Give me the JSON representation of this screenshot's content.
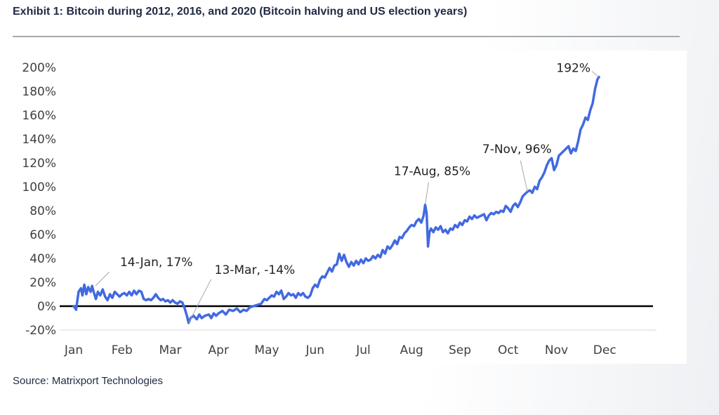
{
  "header": {
    "title": "Exhibit 1: Bitcoin during 2012, 2016, and 2020 (Bitcoin halving and US election years)"
  },
  "footer": {
    "source": "Source: Matrixport Technologies"
  },
  "chart_data": {
    "type": "line",
    "title": "",
    "xlabel": "",
    "ylabel": "",
    "ylim": [
      -20,
      200
    ],
    "xlim": [
      0,
      12
    ],
    "yticks": [
      -20,
      0,
      20,
      40,
      60,
      80,
      100,
      120,
      140,
      160,
      180,
      200
    ],
    "ytick_labels": [
      "-20%",
      "0%",
      "20%",
      "40%",
      "60%",
      "80%",
      "100%",
      "120%",
      "140%",
      "160%",
      "180%",
      "200%"
    ],
    "xtick_labels": [
      "Jan",
      "Feb",
      "Mar",
      "Apr",
      "May",
      "Jun",
      "Jul",
      "Aug",
      "Sep",
      "Oct",
      "Nov",
      "Dec"
    ],
    "grid": false,
    "zero_line": true,
    "line_color": "#4169e1",
    "series": [
      {
        "points": [
          [
            0.0,
            0
          ],
          [
            0.05,
            -3
          ],
          [
            0.1,
            12
          ],
          [
            0.15,
            15
          ],
          [
            0.18,
            9
          ],
          [
            0.22,
            18
          ],
          [
            0.26,
            10
          ],
          [
            0.3,
            16
          ],
          [
            0.35,
            12
          ],
          [
            0.38,
            17
          ],
          [
            0.42,
            11
          ],
          [
            0.46,
            6
          ],
          [
            0.5,
            12
          ],
          [
            0.55,
            9
          ],
          [
            0.6,
            14
          ],
          [
            0.65,
            8
          ],
          [
            0.7,
            5
          ],
          [
            0.75,
            10
          ],
          [
            0.8,
            7
          ],
          [
            0.85,
            12
          ],
          [
            0.9,
            10
          ],
          [
            0.95,
            8
          ],
          [
            1.0,
            10
          ],
          [
            1.05,
            11
          ],
          [
            1.1,
            9
          ],
          [
            1.15,
            12
          ],
          [
            1.2,
            9
          ],
          [
            1.25,
            13
          ],
          [
            1.3,
            10
          ],
          [
            1.35,
            13
          ],
          [
            1.4,
            12
          ],
          [
            1.45,
            6
          ],
          [
            1.5,
            5
          ],
          [
            1.55,
            6
          ],
          [
            1.6,
            5
          ],
          [
            1.65,
            7
          ],
          [
            1.7,
            10
          ],
          [
            1.75,
            7
          ],
          [
            1.8,
            5
          ],
          [
            1.85,
            6
          ],
          [
            1.9,
            4
          ],
          [
            1.95,
            5
          ],
          [
            2.0,
            3
          ],
          [
            2.05,
            5
          ],
          [
            2.1,
            3
          ],
          [
            2.15,
            2
          ],
          [
            2.2,
            4
          ],
          [
            2.25,
            3
          ],
          [
            2.3,
            -2
          ],
          [
            2.35,
            -9
          ],
          [
            2.38,
            -14
          ],
          [
            2.42,
            -10
          ],
          [
            2.48,
            -8
          ],
          [
            2.55,
            -11
          ],
          [
            2.6,
            -7
          ],
          [
            2.65,
            -10
          ],
          [
            2.72,
            -8
          ],
          [
            2.8,
            -7
          ],
          [
            2.85,
            -10
          ],
          [
            2.9,
            -6
          ],
          [
            2.95,
            -8
          ],
          [
            3.0,
            -6
          ],
          [
            3.08,
            -4
          ],
          [
            3.15,
            -7
          ],
          [
            3.22,
            -3
          ],
          [
            3.3,
            -4
          ],
          [
            3.38,
            -2
          ],
          [
            3.45,
            -5
          ],
          [
            3.52,
            -3
          ],
          [
            3.58,
            -4
          ],
          [
            3.65,
            -1
          ],
          [
            3.72,
            0
          ],
          [
            3.8,
            1
          ],
          [
            3.88,
            2
          ],
          [
            3.95,
            6
          ],
          [
            4.0,
            5
          ],
          [
            4.05,
            7
          ],
          [
            4.1,
            9
          ],
          [
            4.15,
            8
          ],
          [
            4.2,
            12
          ],
          [
            4.25,
            10
          ],
          [
            4.3,
            13
          ],
          [
            4.35,
            6
          ],
          [
            4.4,
            8
          ],
          [
            4.45,
            11
          ],
          [
            4.5,
            9
          ],
          [
            4.55,
            10
          ],
          [
            4.6,
            7
          ],
          [
            4.65,
            11
          ],
          [
            4.7,
            9
          ],
          [
            4.75,
            11
          ],
          [
            4.8,
            8
          ],
          [
            4.85,
            7
          ],
          [
            4.9,
            9
          ],
          [
            4.95,
            15
          ],
          [
            5.0,
            18
          ],
          [
            5.05,
            16
          ],
          [
            5.1,
            22
          ],
          [
            5.15,
            25
          ],
          [
            5.2,
            24
          ],
          [
            5.25,
            28
          ],
          [
            5.3,
            32
          ],
          [
            5.35,
            29
          ],
          [
            5.4,
            34
          ],
          [
            5.45,
            35
          ],
          [
            5.5,
            44
          ],
          [
            5.55,
            38
          ],
          [
            5.6,
            43
          ],
          [
            5.65,
            37
          ],
          [
            5.7,
            33
          ],
          [
            5.75,
            37
          ],
          [
            5.8,
            34
          ],
          [
            5.85,
            38
          ],
          [
            5.9,
            35
          ],
          [
            5.95,
            39
          ],
          [
            6.0,
            36
          ],
          [
            6.05,
            40
          ],
          [
            6.1,
            38
          ],
          [
            6.15,
            39
          ],
          [
            6.2,
            42
          ],
          [
            6.25,
            40
          ],
          [
            6.3,
            43
          ],
          [
            6.35,
            41
          ],
          [
            6.4,
            47
          ],
          [
            6.45,
            44
          ],
          [
            6.5,
            50
          ],
          [
            6.55,
            48
          ],
          [
            6.6,
            51
          ],
          [
            6.65,
            55
          ],
          [
            6.7,
            52
          ],
          [
            6.75,
            58
          ],
          [
            6.8,
            57
          ],
          [
            6.85,
            61
          ],
          [
            6.9,
            63
          ],
          [
            6.95,
            66
          ],
          [
            7.0,
            68
          ],
          [
            7.05,
            67
          ],
          [
            7.1,
            71
          ],
          [
            7.15,
            73
          ],
          [
            7.2,
            70
          ],
          [
            7.25,
            76
          ],
          [
            7.28,
            85
          ],
          [
            7.31,
            78
          ],
          [
            7.34,
            50
          ],
          [
            7.37,
            62
          ],
          [
            7.4,
            65
          ],
          [
            7.45,
            62
          ],
          [
            7.5,
            66
          ],
          [
            7.55,
            64
          ],
          [
            7.6,
            67
          ],
          [
            7.65,
            62
          ],
          [
            7.7,
            64
          ],
          [
            7.75,
            61
          ],
          [
            7.8,
            65
          ],
          [
            7.85,
            64
          ],
          [
            7.9,
            68
          ],
          [
            7.95,
            66
          ],
          [
            8.0,
            70
          ],
          [
            8.05,
            68
          ],
          [
            8.1,
            72
          ],
          [
            8.15,
            71
          ],
          [
            8.2,
            75
          ],
          [
            8.25,
            73
          ],
          [
            8.3,
            76
          ],
          [
            8.35,
            74
          ],
          [
            8.4,
            75
          ],
          [
            8.45,
            76
          ],
          [
            8.5,
            77
          ],
          [
            8.55,
            72
          ],
          [
            8.6,
            76
          ],
          [
            8.65,
            78
          ],
          [
            8.7,
            77
          ],
          [
            8.75,
            79
          ],
          [
            8.8,
            78
          ],
          [
            8.85,
            80
          ],
          [
            8.9,
            79
          ],
          [
            8.95,
            84
          ],
          [
            9.0,
            82
          ],
          [
            9.05,
            79
          ],
          [
            9.1,
            84
          ],
          [
            9.15,
            86
          ],
          [
            9.2,
            83
          ],
          [
            9.25,
            87
          ],
          [
            9.3,
            92
          ],
          [
            9.35,
            94
          ],
          [
            9.4,
            96
          ],
          [
            9.45,
            97
          ],
          [
            9.5,
            95
          ],
          [
            9.55,
            100
          ],
          [
            9.6,
            98
          ],
          [
            9.65,
            105
          ],
          [
            9.7,
            108
          ],
          [
            9.75,
            112
          ],
          [
            9.8,
            118
          ],
          [
            9.85,
            122
          ],
          [
            9.9,
            124
          ],
          [
            9.95,
            114
          ],
          [
            10.0,
            118
          ],
          [
            10.05,
            126
          ],
          [
            10.1,
            128
          ],
          [
            10.15,
            130
          ],
          [
            10.2,
            132
          ],
          [
            10.25,
            134
          ],
          [
            10.3,
            128
          ],
          [
            10.35,
            132
          ],
          [
            10.4,
            130
          ],
          [
            10.45,
            138
          ],
          [
            10.5,
            148
          ],
          [
            10.55,
            152
          ],
          [
            10.6,
            158
          ],
          [
            10.65,
            156
          ],
          [
            10.7,
            164
          ],
          [
            10.75,
            170
          ],
          [
            10.8,
            182
          ],
          [
            10.85,
            190
          ],
          [
            10.88,
            192
          ]
        ]
      }
    ],
    "annotations": [
      {
        "text": "14-Jan, 17%",
        "x": 0.45,
        "y": 17
      },
      {
        "text": "13-Mar, -14%",
        "x": 2.38,
        "y": -14
      },
      {
        "text": "17-Aug, 85%",
        "x": 7.28,
        "y": 85
      },
      {
        "text": "7-Nov, 96%",
        "x": 9.4,
        "y": 96
      },
      {
        "text": "192%",
        "x": 10.88,
        "y": 192
      }
    ]
  }
}
